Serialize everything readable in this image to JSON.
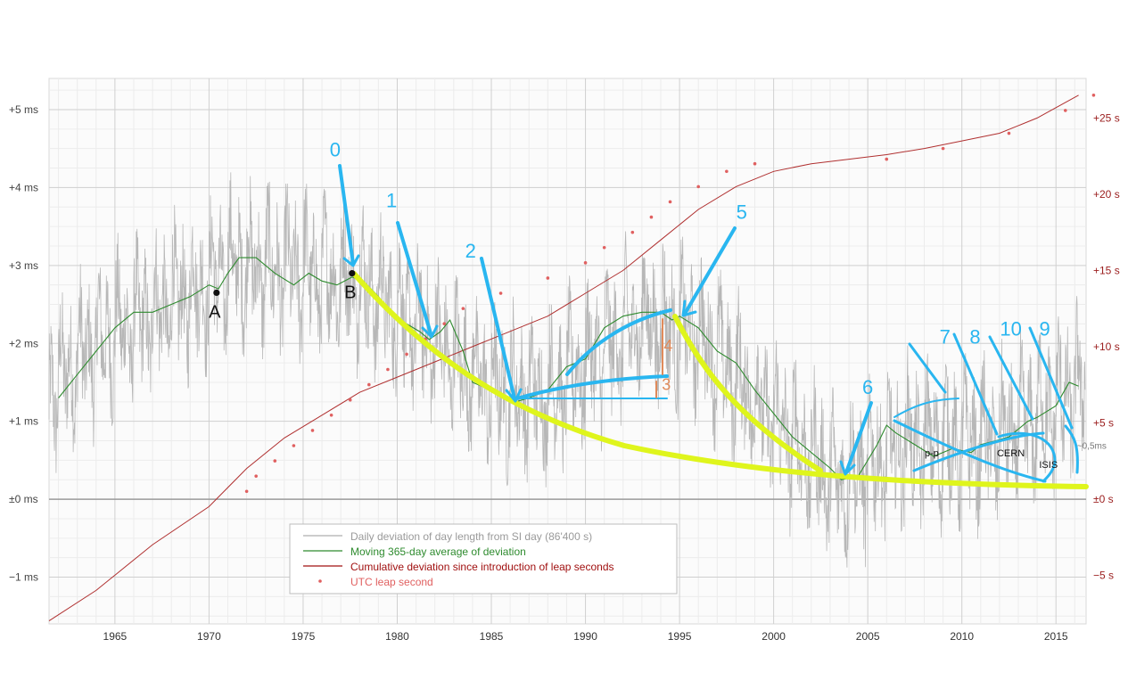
{
  "chart_data": {
    "type": "line",
    "title": "",
    "xlabel": "",
    "ylabel": "",
    "xlim": [
      1961.5,
      2016.6
    ],
    "ylim_left": [
      -1.6,
      5.4
    ],
    "ylim_right": [
      -8.2,
      27.6
    ],
    "grid": true,
    "legend_placement": "bottom-center",
    "x_ticks": [
      "1965",
      "1970",
      "1975",
      "1980",
      "1985",
      "1990",
      "1995",
      "2000",
      "2005",
      "2010",
      "2015"
    ],
    "y_ticks_left": [
      "−1 ms",
      "±0 ms",
      "+1 ms",
      "+2 ms",
      "+3 ms",
      "+4 ms",
      "+5 ms"
    ],
    "y_ticks_left_values": [
      -1,
      0,
      1,
      2,
      3,
      4,
      5
    ],
    "y_ticks_right": [
      "−5 s",
      "±0 s",
      "+5 s",
      "+10 s",
      "+15 s",
      "+20 s",
      "+25 s"
    ],
    "y_ticks_right_values": [
      -5,
      0,
      5,
      10,
      15,
      20,
      25
    ],
    "colors": {
      "daily": "#b7b7b7",
      "moving": "#2e8b2e",
      "cumulative": "#b03030",
      "leap": "#e06060",
      "annot_blue": "#29b6f0",
      "annot_yellow": "#dff51c",
      "annot_orange": "#e08a5a",
      "grid": "#dddddd"
    },
    "legend": [
      {
        "label": "Daily deviation of day length from SI day (86'400 s)",
        "color": "#9a9a9a"
      },
      {
        "label": "Moving 365-day average of deviation",
        "color": "#2e8b2e"
      },
      {
        "label": "Cumulative deviation since introduction of leap seconds",
        "color": "#a01010"
      },
      {
        "label": "UTC leap second",
        "color": "#e06060"
      }
    ],
    "series": [
      {
        "name": "Moving 365-day average of deviation",
        "axis": "left",
        "x": [
          1962.0,
          1963.0,
          1964.0,
          1965.0,
          1966.0,
          1967.0,
          1968.0,
          1969.0,
          1970.0,
          1970.5,
          1971.0,
          1971.6,
          1972.5,
          1973.5,
          1974.5,
          1975.3,
          1976.0,
          1976.8,
          1977.6,
          1978.2,
          1979.0,
          1980.0,
          1980.5,
          1981.2,
          1981.7,
          1982.3,
          1982.8,
          1983.5,
          1984.0,
          1985.0,
          1985.8,
          1986.3,
          1987.0,
          1988.0,
          1989.0,
          1990.0,
          1991.0,
          1992.0,
          1993.0,
          1994.0,
          1994.6,
          1995.0,
          1996.0,
          1997.0,
          1998.0,
          1999.0,
          2000.0,
          2001.0,
          2002.0,
          2003.0,
          2003.6,
          2004.5,
          2005.5,
          2006.0,
          2006.5,
          2007.5,
          2008.5,
          2009.5,
          2010.5,
          2011.0,
          2011.8,
          2012.5,
          2013.5,
          2014.0,
          2015.0,
          2015.7,
          2016.2
        ],
        "values": [
          1.3,
          1.6,
          1.9,
          2.2,
          2.4,
          2.4,
          2.5,
          2.6,
          2.75,
          2.7,
          2.9,
          3.1,
          3.1,
          2.9,
          2.75,
          2.9,
          2.8,
          2.75,
          2.85,
          2.8,
          2.6,
          2.3,
          2.25,
          2.15,
          2.05,
          2.15,
          2.3,
          1.9,
          1.5,
          1.4,
          1.3,
          1.25,
          1.3,
          1.4,
          1.7,
          1.8,
          2.2,
          2.35,
          2.4,
          2.4,
          2.3,
          2.35,
          2.2,
          1.9,
          1.75,
          1.4,
          1.1,
          0.8,
          0.6,
          0.4,
          0.25,
          0.3,
          0.7,
          0.95,
          0.85,
          0.7,
          0.55,
          0.65,
          0.6,
          0.7,
          0.75,
          0.8,
          1.0,
          1.05,
          1.2,
          1.5,
          1.45
        ]
      },
      {
        "name": "Cumulative deviation since introduction of leap seconds",
        "axis": "right",
        "x": [
          1961.5,
          1964.0,
          1967.0,
          1970.0,
          1972.0,
          1974.0,
          1976.0,
          1978.0,
          1980.0,
          1982.0,
          1984.0,
          1986.0,
          1988.0,
          1990.0,
          1992.0,
          1994.0,
          1996.0,
          1998.0,
          2000.0,
          2002.0,
          2004.0,
          2006.0,
          2008.0,
          2010.0,
          2012.0,
          2014.0,
          2016.2
        ],
        "values": [
          -8.0,
          -6.0,
          -3.0,
          -0.5,
          2.0,
          4.0,
          5.5,
          7.0,
          8.0,
          9.0,
          10.0,
          11.0,
          12.0,
          13.5,
          15.0,
          17.0,
          19.0,
          20.5,
          21.5,
          22.0,
          22.3,
          22.6,
          23.0,
          23.5,
          24.0,
          25.0,
          26.5
        ]
      },
      {
        "name": "UTC leap second",
        "axis": "right",
        "marker": "dot",
        "x": [
          1972.0,
          1972.5,
          1973.5,
          1974.5,
          1975.5,
          1976.5,
          1977.5,
          1978.5,
          1979.5,
          1980.5,
          1981.5,
          1982.5,
          1983.5,
          1985.5,
          1988.0,
          1990.0,
          1991.0,
          1992.5,
          1993.5,
          1994.5,
          1996.0,
          1997.5,
          1999.0,
          2006.0,
          2009.0,
          2012.5,
          2015.5,
          2017.0
        ],
        "values": [
          0.5,
          1.5,
          2.5,
          3.5,
          4.5,
          5.5,
          6.5,
          7.5,
          8.5,
          9.5,
          10.5,
          11.5,
          12.5,
          13.5,
          14.5,
          15.5,
          16.5,
          17.5,
          18.5,
          19.5,
          20.5,
          21.5,
          22.0,
          22.3,
          23.0,
          24.0,
          25.5,
          26.5
        ]
      },
      {
        "name": "Daily deviation of day length from SI day (86'400 s)",
        "axis": "left",
        "trend_x": [
          1961.5,
          1964.0,
          1968.0,
          1971.5,
          1975.0,
          1978.0,
          1981.5,
          1985.0,
          1988.0,
          1993.0,
          1996.0,
          2000.0,
          2003.5,
          2007.0,
          2012.0,
          2016.2
        ],
        "trend_values": [
          1.4,
          2.0,
          2.5,
          3.0,
          2.9,
          2.8,
          2.1,
          1.4,
          1.35,
          2.3,
          2.1,
          1.0,
          0.2,
          0.7,
          0.75,
          1.4
        ],
        "amplitude": 0.9
      }
    ],
    "points": [
      {
        "label": "A",
        "x": 1970.4,
        "y": 2.65
      },
      {
        "label": "B",
        "x": 1977.6,
        "y": 2.9
      }
    ],
    "annotations": {
      "numbers": [
        {
          "text": "0",
          "x": 1976.7,
          "y": 4.4
        },
        {
          "text": "1",
          "x": 1979.7,
          "y": 3.75
        },
        {
          "text": "2",
          "x": 1983.9,
          "y": 3.1
        },
        {
          "text": "5",
          "x": 1998.3,
          "y": 3.6
        },
        {
          "text": "6",
          "x": 2005.0,
          "y": 1.35
        },
        {
          "text": "7",
          "x": 2009.1,
          "y": 2.0
        },
        {
          "text": "8",
          "x": 2010.7,
          "y": 2.0
        },
        {
          "text": "10",
          "x": 2012.6,
          "y": 2.1
        },
        {
          "text": "9",
          "x": 2014.4,
          "y": 2.1
        }
      ],
      "small_labels": [
        {
          "text": "4",
          "x": 1994.4,
          "y": 1.9
        },
        {
          "text": "3",
          "x": 1994.3,
          "y": 1.4
        }
      ],
      "notes": [
        {
          "text": "p-p",
          "x": 2008.4,
          "y": 0.55
        },
        {
          "text": "CERN",
          "x": 2012.6,
          "y": 0.55
        },
        {
          "text": "ISIS",
          "x": 2014.6,
          "y": 0.4
        },
        {
          "text": "~0,5ms",
          "x": 2016.9,
          "y": 0.65
        }
      ]
    }
  }
}
